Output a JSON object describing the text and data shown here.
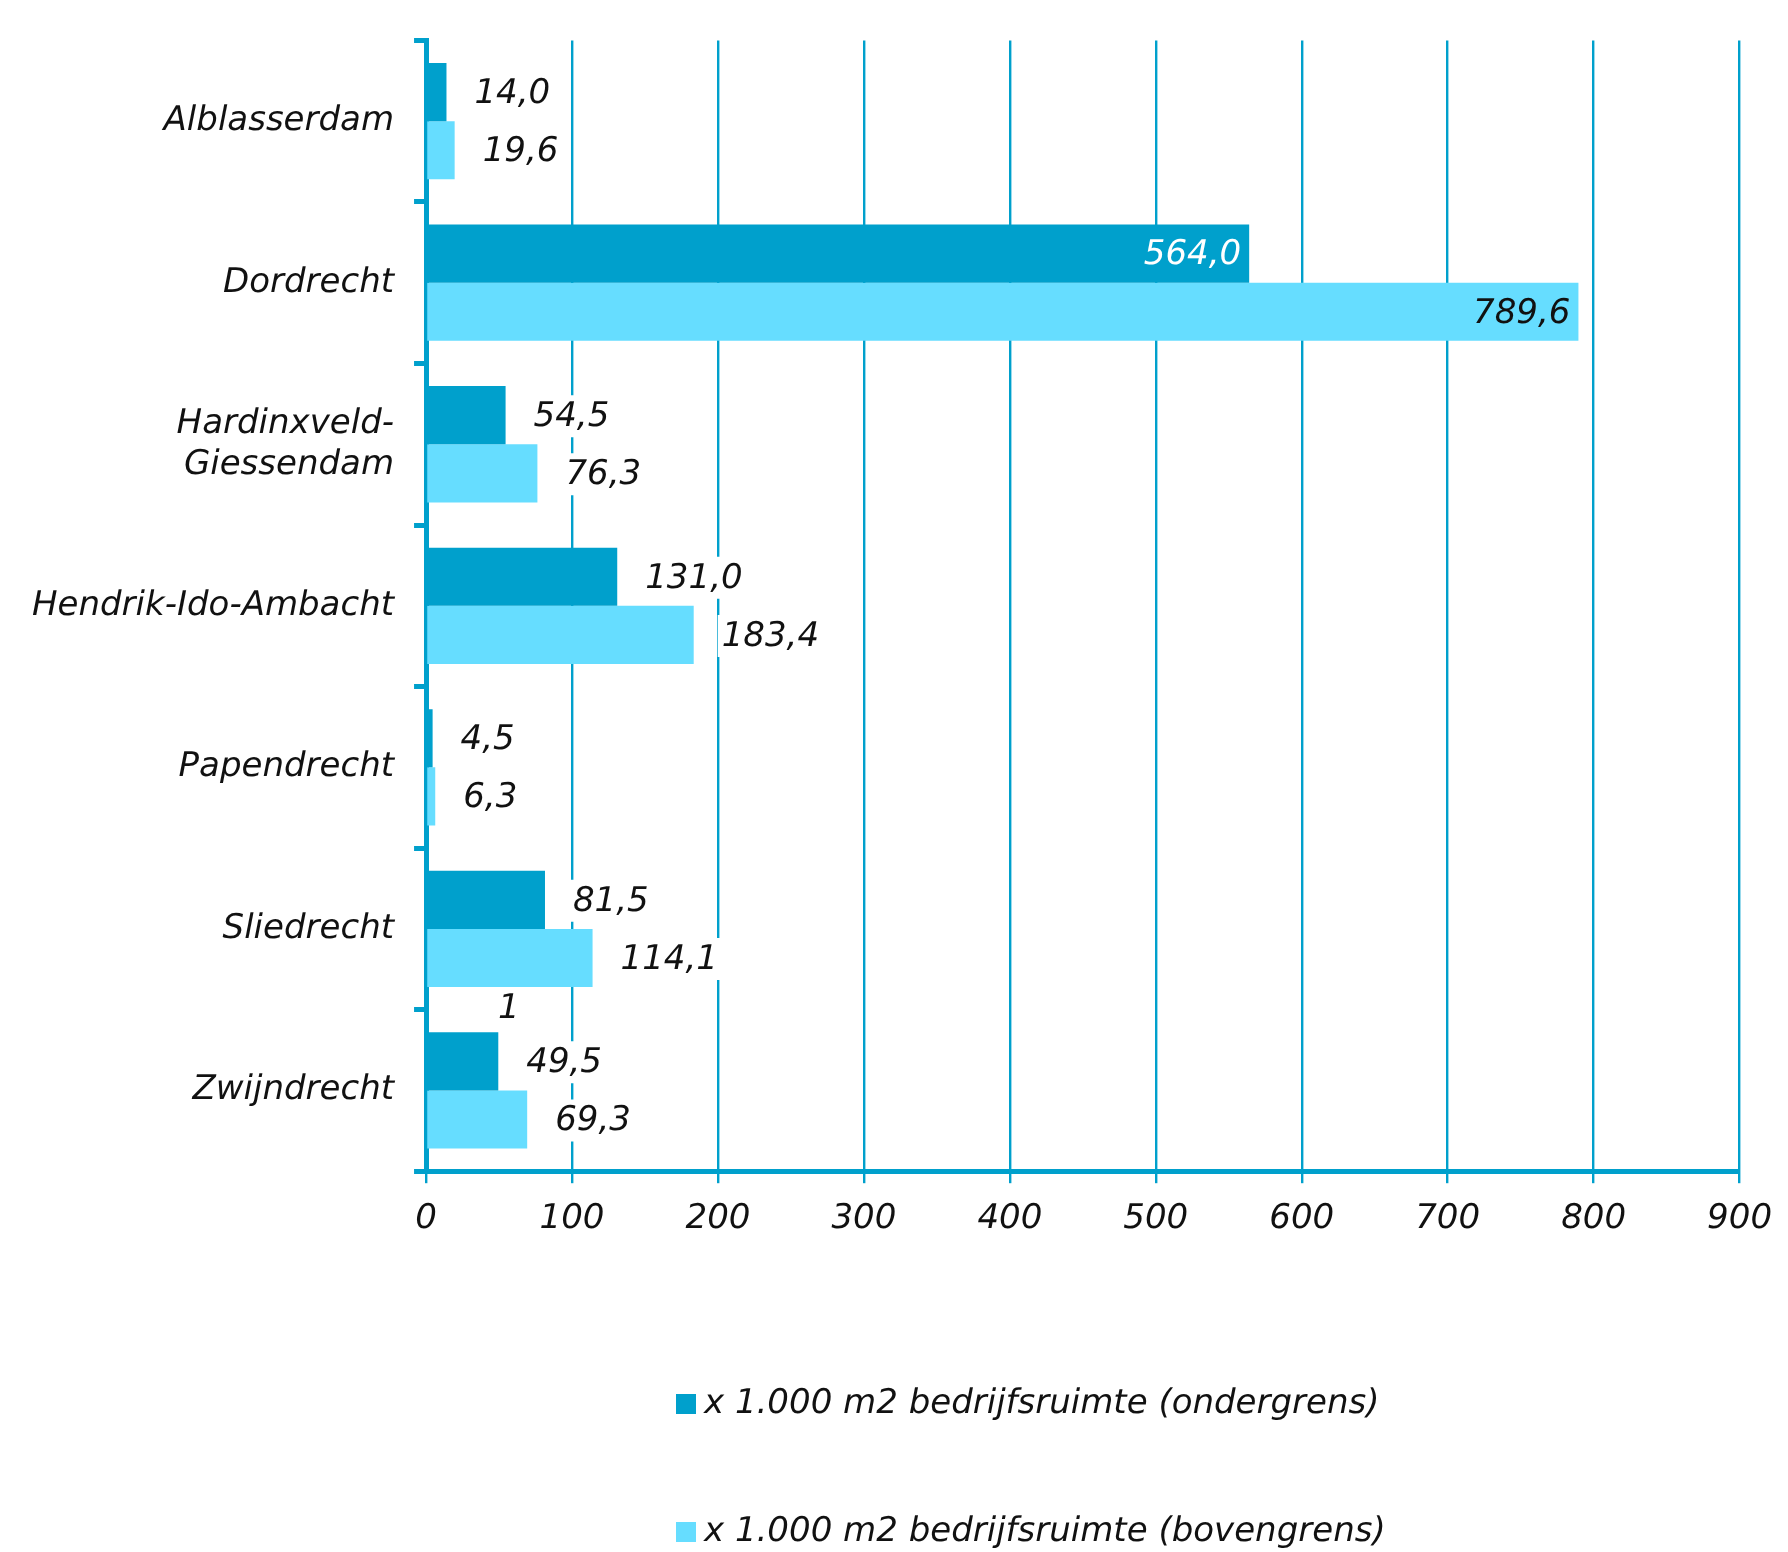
{
  "chart_data": {
    "type": "bar",
    "orientation": "horizontal",
    "categories": [
      "Alblasserdam",
      "Dordrecht",
      "Hardinxveld-Giessendam",
      "Hendrik-Ido-Ambacht",
      "Papendrecht",
      "Sliedrecht",
      "Zwijndrecht"
    ],
    "series": [
      {
        "name": "x 1.000 m2 bedrijfsruimte (ondergrens)",
        "color": "#00a0cc",
        "values": [
          14.0,
          564.0,
          54.5,
          131.0,
          4.5,
          81.5,
          49.5
        ],
        "value_labels": [
          "14,0",
          "564,0",
          "54,5",
          "131,0",
          "4,5",
          "81,5",
          "49,5"
        ]
      },
      {
        "name": "x 1.000 m2 bedrijfsruimte (bovengrens)",
        "color": "#66ddff",
        "values": [
          19.6,
          789.6,
          76.3,
          183.4,
          6.3,
          114.1,
          69.3
        ],
        "value_labels": [
          "19,6",
          "789,6",
          "76,3",
          "183,4",
          "6,3",
          "114,1",
          "69,3"
        ]
      }
    ],
    "xlim": [
      0,
      900
    ],
    "xticks": [
      0,
      100,
      200,
      300,
      400,
      500,
      600,
      700,
      800,
      900
    ],
    "grid": "x",
    "legend": "bottom",
    "annotations": [
      "1"
    ]
  }
}
